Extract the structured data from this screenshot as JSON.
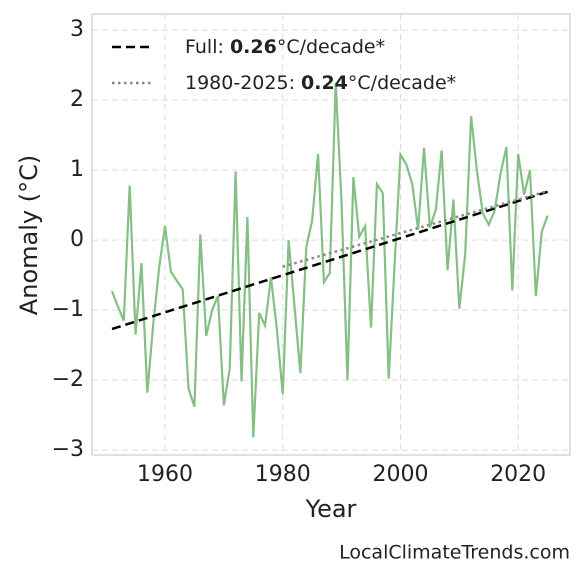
{
  "chart_data": {
    "type": "line",
    "x": [
      1951,
      1952,
      1953,
      1954,
      1955,
      1956,
      1957,
      1958,
      1959,
      1960,
      1961,
      1962,
      1963,
      1964,
      1965,
      1966,
      1967,
      1968,
      1969,
      1970,
      1971,
      1972,
      1973,
      1974,
      1975,
      1976,
      1977,
      1978,
      1979,
      1980,
      1981,
      1982,
      1983,
      1984,
      1985,
      1986,
      1987,
      1988,
      1989,
      1990,
      1991,
      1992,
      1993,
      1994,
      1995,
      1996,
      1997,
      1998,
      1999,
      2000,
      2001,
      2002,
      2003,
      2004,
      2005,
      2006,
      2007,
      2008,
      2009,
      2010,
      2011,
      2012,
      2013,
      2014,
      2015,
      2016,
      2017,
      2018,
      2019,
      2020,
      2021,
      2022,
      2023,
      2024,
      2025
    ],
    "series": [
      {
        "color": "#86bf85",
        "values": [
          -0.73,
          -0.95,
          -1.15,
          0.78,
          -1.35,
          -0.33,
          -2.18,
          -1.2,
          -0.4,
          0.2,
          -0.45,
          -0.58,
          -0.7,
          -2.12,
          -2.38,
          0.08,
          -1.37,
          -1.0,
          -0.8,
          -2.36,
          -1.83,
          0.98,
          -2.02,
          0.33,
          -2.82,
          -1.04,
          -1.22,
          -0.53,
          -1.27,
          -2.2,
          0.0,
          -0.95,
          -1.9,
          -0.1,
          0.28,
          1.23,
          -0.6,
          -0.47,
          2.25,
          0.52,
          -2.0,
          0.9,
          0.05,
          0.2,
          -1.25,
          0.8,
          0.67,
          -1.98,
          -0.35,
          1.22,
          1.08,
          0.8,
          0.15,
          1.32,
          0.18,
          0.43,
          1.28,
          -0.43,
          0.58,
          -0.98,
          -0.2,
          1.77,
          0.98,
          0.38,
          0.22,
          0.42,
          0.95,
          1.33,
          -0.72,
          1.23,
          0.65,
          1.0,
          -0.8,
          0.12,
          0.35
        ]
      },
      {
        "name": [
          "Full: ",
          "0.26",
          "°C/decade*"
        ],
        "color": "#000000",
        "dash": "dashed",
        "x": [
          1951,
          2025
        ],
        "values": [
          -1.27,
          0.69
        ]
      },
      {
        "name": [
          "1980-2025: ",
          "0.24",
          "°C/decade*"
        ],
        "color": "#888888",
        "dash": "dotted",
        "x": [
          1980,
          2025
        ],
        "values": [
          -0.38,
          0.7
        ]
      }
    ],
    "xlabel": "Year",
    "ylabel": "Anomaly (°C)",
    "xlim": [
      1947.6,
      2028.8
    ],
    "xticks": [
      1960,
      1980,
      2000,
      2020
    ],
    "ylim": [
      -3.07,
      3.23
    ],
    "yticks": [
      {
        "value": -3,
        "label": "−3"
      },
      {
        "value": -2,
        "label": "−2"
      },
      {
        "value": -1,
        "label": "−1"
      },
      0,
      1,
      2,
      3
    ],
    "grid": true,
    "legend": "upper left",
    "source": "LocalClimateTrends.com"
  }
}
